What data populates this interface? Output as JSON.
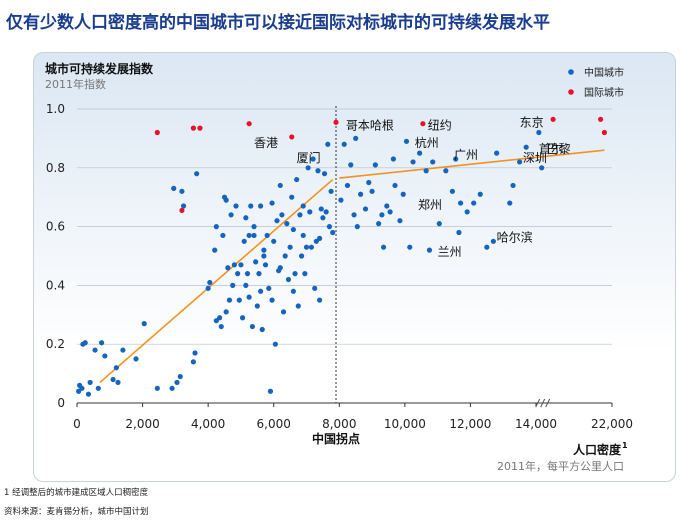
{
  "page": {
    "title": "仅有少数人口密度高的中国城市可以接近国际对标城市的可持续发展水平",
    "footnote": "1 经调整后的城市建成区域人口稠密度",
    "source": "资料来源：麦肯锡分析，城市中国计划"
  },
  "chart_data": {
    "type": "scatter",
    "ylabel": "城市可持续发展指数",
    "ylabel_sub": "2011年指数",
    "xlabel": "人口密度",
    "xlabel_sup": "1",
    "xlabel_sub": "2011年，每平方公里人口",
    "xlim": [
      0,
      22000
    ],
    "ylim": [
      0,
      1.0
    ],
    "x_ticks": [
      0,
      2000,
      4000,
      6000,
      8000,
      10000,
      12000,
      14000,
      22000
    ],
    "x_tick_labels": [
      "0",
      "2,000",
      "4,000",
      "6,000",
      "8,000",
      "10,000",
      "12,000",
      "14,000",
      "22,000"
    ],
    "y_ticks": [
      0,
      0.2,
      0.4,
      0.6,
      0.8,
      1.0
    ],
    "y_tick_labels": [
      "0",
      "0.2",
      "0.4",
      "0.6",
      "0.8",
      "1.0"
    ],
    "axis_break_x": 14600,
    "inflection": {
      "x": 7900,
      "label": "中国拐点"
    },
    "legend": {
      "position": "top-right",
      "items": [
        {
          "name": "中国城市",
          "color": "#1565c0"
        },
        {
          "name": "国际城市",
          "color": "#e8102a"
        }
      ]
    },
    "trendlines": [
      {
        "name": "trend-low",
        "color": "#f39222",
        "from": [
          700,
          0.07
        ],
        "to": [
          7800,
          0.76
        ]
      },
      {
        "name": "trend-high",
        "color": "#f39222",
        "from": [
          8000,
          0.765
        ],
        "to": [
          21200,
          0.86
        ]
      }
    ],
    "series": [
      {
        "name": "中国城市",
        "color": "#1565c0",
        "points": [
          [
            50,
            0.04
          ],
          [
            80,
            0.06
          ],
          [
            150,
            0.05
          ],
          [
            180,
            0.2
          ],
          [
            250,
            0.205
          ],
          [
            350,
            0.03
          ],
          [
            400,
            0.07
          ],
          [
            550,
            0.18
          ],
          [
            650,
            0.05
          ],
          [
            750,
            0.205
          ],
          [
            850,
            0.16
          ],
          [
            1100,
            0.08
          ],
          [
            1200,
            0.12
          ],
          [
            1250,
            0.07
          ],
          [
            1400,
            0.18
          ],
          [
            1800,
            0.15
          ],
          [
            2050,
            0.27
          ],
          [
            2450,
            0.05
          ],
          [
            2900,
            0.05
          ],
          [
            2950,
            0.73
          ],
          [
            3050,
            0.07
          ],
          [
            3150,
            0.09
          ],
          [
            3200,
            0.72
          ],
          [
            3250,
            0.67
          ],
          [
            3550,
            0.14
          ],
          [
            3600,
            0.17
          ],
          [
            3650,
            0.78
          ],
          [
            4000,
            0.39
          ],
          [
            4050,
            0.41
          ],
          [
            4200,
            0.52
          ],
          [
            4250,
            0.6
          ],
          [
            4250,
            0.28
          ],
          [
            4350,
            0.29
          ],
          [
            4400,
            0.26
          ],
          [
            4450,
            0.57
          ],
          [
            4500,
            0.7
          ],
          [
            4550,
            0.69
          ],
          [
            4550,
            0.31
          ],
          [
            4600,
            0.46
          ],
          [
            4650,
            0.35
          ],
          [
            4700,
            0.64
          ],
          [
            4750,
            0.4
          ],
          [
            4800,
            0.47
          ],
          [
            4850,
            0.67
          ],
          [
            4900,
            0.44
          ],
          [
            4950,
            0.35
          ],
          [
            5000,
            0.47
          ],
          [
            5050,
            0.29
          ],
          [
            5100,
            0.55
          ],
          [
            5150,
            0.4
          ],
          [
            5200,
            0.44
          ],
          [
            5250,
            0.36
          ],
          [
            5250,
            0.57
          ],
          [
            5300,
            0.67
          ],
          [
            5350,
            0.26
          ],
          [
            5400,
            0.6
          ],
          [
            5450,
            0.48
          ],
          [
            5500,
            0.33
          ],
          [
            5550,
            0.44
          ],
          [
            5600,
            0.67
          ],
          [
            5600,
            0.38
          ],
          [
            5650,
            0.25
          ],
          [
            5700,
            0.52
          ],
          [
            5750,
            0.47
          ],
          [
            5800,
            0.57
          ],
          [
            5850,
            0.39
          ],
          [
            5900,
            0.04
          ],
          [
            5950,
            0.68
          ],
          [
            6000,
            0.55
          ],
          [
            6050,
            0.2
          ],
          [
            6100,
            0.62
          ],
          [
            6150,
            0.45
          ],
          [
            6200,
            0.74
          ],
          [
            6250,
            0.64
          ],
          [
            6300,
            0.31
          ],
          [
            6350,
            0.5
          ],
          [
            6400,
            0.61
          ],
          [
            6450,
            0.42
          ],
          [
            6500,
            0.53
          ],
          [
            6550,
            0.7
          ],
          [
            6600,
            0.59
          ],
          [
            6650,
            0.44
          ],
          [
            6700,
            0.76
          ],
          [
            6750,
            0.33
          ],
          [
            6800,
            0.64
          ],
          [
            6850,
            0.5
          ],
          [
            6900,
            0.57
          ],
          [
            6950,
            0.44
          ],
          [
            7000,
            0.53
          ],
          [
            7050,
            0.8
          ],
          [
            7100,
            0.65
          ],
          [
            7150,
            0.53
          ],
          [
            7200,
            0.83
          ],
          [
            7250,
            0.39
          ],
          [
            7300,
            0.55
          ],
          [
            7350,
            0.79
          ],
          [
            7400,
            0.56
          ],
          [
            7450,
            0.66
          ],
          [
            7500,
            0.63
          ],
          [
            7550,
            0.78
          ],
          [
            7600,
            0.65
          ],
          [
            7650,
            0.88
          ],
          [
            7700,
            0.6
          ],
          [
            7750,
            0.72
          ],
          [
            7800,
            0.58
          ],
          [
            5150,
            0.63
          ],
          [
            5400,
            0.57
          ],
          [
            5950,
            0.35
          ],
          [
            6600,
            0.38
          ],
          [
            6900,
            0.67
          ],
          [
            7400,
            0.35
          ],
          [
            5700,
            0.5
          ],
          [
            6200,
            0.46
          ],
          [
            8050,
            0.69
          ],
          [
            8150,
            0.88
          ],
          [
            8250,
            0.74
          ],
          [
            8350,
            0.81
          ],
          [
            8450,
            0.64
          ],
          [
            8500,
            0.9
          ],
          [
            8550,
            0.6
          ],
          [
            8650,
            0.71
          ],
          [
            8800,
            0.66
          ],
          [
            8900,
            0.75
          ],
          [
            9000,
            0.72
          ],
          [
            9100,
            0.81
          ],
          [
            9200,
            0.61
          ],
          [
            9300,
            0.64
          ],
          [
            9350,
            0.53
          ],
          [
            9450,
            0.67
          ],
          [
            9550,
            0.65
          ],
          [
            9650,
            0.83
          ],
          [
            9700,
            0.74
          ],
          [
            9850,
            0.62
          ],
          [
            9950,
            0.71
          ],
          [
            10050,
            0.89
          ],
          [
            10150,
            0.53
          ],
          [
            10250,
            0.82
          ],
          [
            10450,
            0.85
          ],
          [
            10650,
            0.79
          ],
          [
            10750,
            0.52
          ],
          [
            10850,
            0.82
          ],
          [
            11050,
            0.61
          ],
          [
            11250,
            0.79
          ],
          [
            11450,
            0.72
          ],
          [
            11550,
            0.83
          ],
          [
            11650,
            0.58
          ],
          [
            11700,
            0.68
          ],
          [
            11900,
            0.65
          ],
          [
            12100,
            0.68
          ],
          [
            12300,
            0.71
          ],
          [
            12500,
            0.53
          ],
          [
            12700,
            0.55
          ],
          [
            12800,
            0.85
          ],
          [
            13200,
            0.68
          ],
          [
            13300,
            0.74
          ],
          [
            13500,
            0.82
          ],
          [
            13700,
            0.87
          ],
          [
            14300,
            0.92
          ],
          [
            14600,
            0.8
          ]
        ],
        "labels": [
          {
            "text": "厦门",
            "x": 6700,
            "y": 0.82
          },
          {
            "text": "杭州",
            "x": 10300,
            "y": 0.87
          },
          {
            "text": "广州",
            "x": 11500,
            "y": 0.83
          },
          {
            "text": "郑州",
            "x": 10400,
            "y": 0.66
          },
          {
            "text": "兰州",
            "x": 11000,
            "y": 0.5
          },
          {
            "text": "哈尔滨",
            "x": 12800,
            "y": 0.55
          },
          {
            "text": "深圳",
            "x": 13600,
            "y": 0.82
          },
          {
            "text": "首尔",
            "x": 14300,
            "y": 0.85
          }
        ]
      },
      {
        "name": "国际城市",
        "color": "#e8102a",
        "points": [
          [
            2450,
            0.92
          ],
          [
            3200,
            0.655
          ],
          [
            3550,
            0.935
          ],
          [
            3750,
            0.935
          ],
          [
            5250,
            0.95
          ],
          [
            6550,
            0.905
          ],
          [
            7900,
            0.955
          ],
          [
            10550,
            0.95
          ],
          [
            15800,
            0.965
          ],
          [
            20800,
            0.965
          ],
          [
            21200,
            0.92
          ]
        ],
        "labels": [
          {
            "text": "香港",
            "x": 5400,
            "y": 0.87
          },
          {
            "text": "哥本哈根",
            "x": 8200,
            "y": 0.93
          },
          {
            "text": "纽约",
            "x": 10700,
            "y": 0.93
          },
          {
            "text": "东京",
            "x": 13500,
            "y": 0.94
          },
          {
            "text": "巴黎",
            "x": 15100,
            "y": 0.85
          }
        ]
      }
    ]
  }
}
